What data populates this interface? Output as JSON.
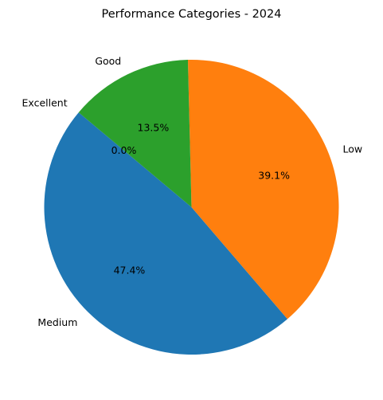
{
  "chart_data": {
    "type": "pie",
    "title": "Performance Categories - 2024",
    "categories": [
      "Medium",
      "Low",
      "Good",
      "Excellent"
    ],
    "values": [
      47.4,
      39.1,
      13.5,
      0.0
    ],
    "percent_labels": [
      "47.4%",
      "39.1%",
      "13.5%",
      "0.0%"
    ],
    "colors": [
      "#1f77b4",
      "#ff7f0e",
      "#2ca02c",
      "#d62728"
    ],
    "start_angle_deg": 140,
    "direction": "counterclockwise",
    "legend": "none"
  }
}
